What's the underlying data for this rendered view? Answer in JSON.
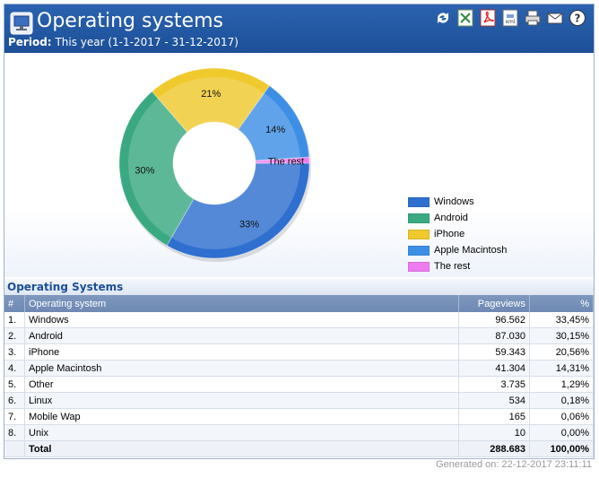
{
  "header": {
    "title": "Operating systems",
    "period_label": "Period:",
    "period_value": "This year (1-1-2017 - 31-12-2017)"
  },
  "toolbar": {
    "icons": [
      "refresh-icon",
      "excel-icon",
      "pdf-icon",
      "xml-icon",
      "print-icon",
      "mail-icon",
      "help-icon"
    ]
  },
  "chart_data": {
    "type": "pie",
    "categories": [
      "Windows",
      "Android",
      "iPhone",
      "Apple Macintosh",
      "The rest"
    ],
    "values": [
      33,
      30,
      21,
      14,
      1
    ],
    "slice_labels": [
      "33%",
      "30%",
      "21%",
      "14%",
      "The rest"
    ],
    "colors": [
      "#2f6fd0",
      "#3aa982",
      "#f0c92d",
      "#3d8fe6",
      "#ee7cf0"
    ],
    "legend": [
      "Windows",
      "Android",
      "iPhone",
      "Apple Macintosh",
      "The rest"
    ]
  },
  "section_title": "Operating Systems",
  "table": {
    "headers": [
      "#",
      "Operating system",
      "Pageviews",
      "%"
    ],
    "rows": [
      [
        "1.",
        "Windows",
        "96.562",
        "33,45%"
      ],
      [
        "2.",
        "Android",
        "87.030",
        "30,15%"
      ],
      [
        "3.",
        "iPhone",
        "59.343",
        "20,56%"
      ],
      [
        "4.",
        "Apple Macintosh",
        "41.304",
        "14,31%"
      ],
      [
        "5.",
        "Other",
        "3.735",
        "1,29%"
      ],
      [
        "6.",
        "Linux",
        "534",
        "0,18%"
      ],
      [
        "7.",
        "Mobile Wap",
        "165",
        "0,06%"
      ],
      [
        "8.",
        "Unix",
        "10",
        "0,00%"
      ]
    ],
    "total": [
      "",
      "Total",
      "288.683",
      "100,00%"
    ]
  },
  "footer": {
    "generated_label": "Generated on:",
    "generated_value": "22-12-2017 23:11:11"
  }
}
